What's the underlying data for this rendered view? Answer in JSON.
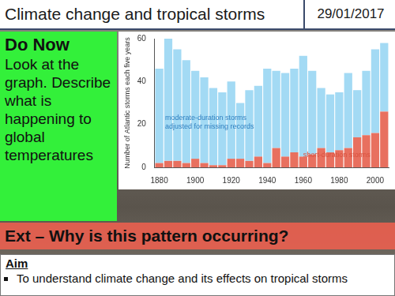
{
  "header": {
    "title": "Climate change and tropical storms",
    "date": "29/01/2017"
  },
  "do_now": {
    "heading": "Do Now",
    "text": "Look at the graph. Describe what is happening to global temperatures"
  },
  "chart_data": {
    "type": "bar",
    "stacked": true,
    "y_label": "Number of Atlantic storms each five years",
    "categories": [
      "1880",
      null,
      null,
      null,
      "1900",
      null,
      null,
      null,
      "1920",
      null,
      null,
      null,
      "1940",
      null,
      null,
      null,
      "1960",
      null,
      null,
      null,
      "1980",
      null,
      null,
      null,
      "2000",
      null
    ],
    "series": [
      {
        "name": "short-duration storms",
        "color": "#e8705f",
        "values": [
          2,
          3,
          3,
          2,
          4,
          2,
          1,
          1,
          4,
          4,
          3,
          5,
          2,
          9,
          5,
          7,
          5,
          6,
          9,
          7,
          8,
          9,
          14,
          15,
          16,
          26
        ]
      },
      {
        "name": "moderate-duration storms adjusted for missing records",
        "color": "#a3daf4",
        "values": [
          44,
          57,
          52,
          48,
          41,
          40,
          36,
          34,
          36,
          26,
          33,
          33,
          44,
          36,
          39,
          39,
          47,
          39,
          28,
          27,
          27,
          35,
          22,
          30,
          39,
          32
        ]
      }
    ],
    "ylim": [
      0,
      60
    ],
    "yticks": [
      0,
      20,
      40,
      60
    ],
    "grid": false
  },
  "extension": "Ext – Why is this pattern occurring?",
  "aim": {
    "heading": "Aim",
    "items": [
      "To understand climate change and its effects on tropical storms"
    ]
  }
}
